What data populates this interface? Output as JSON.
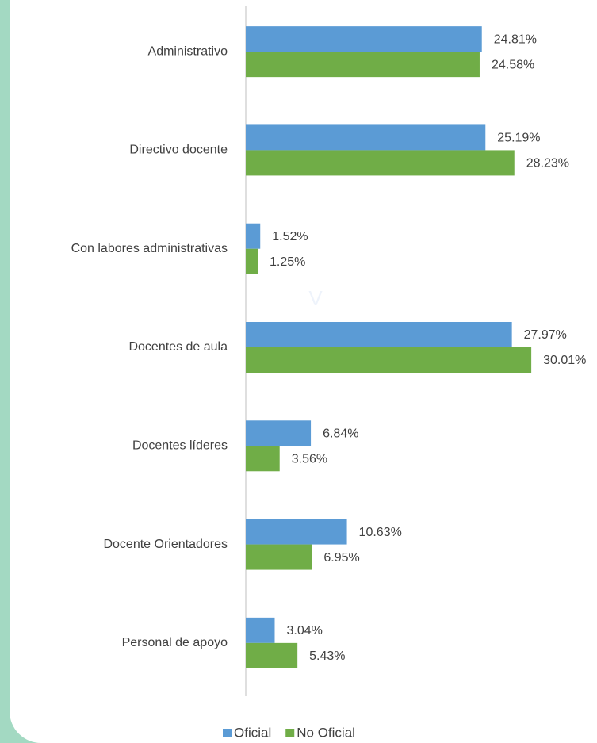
{
  "chart_data": {
    "type": "hbar",
    "categories": [
      "Administrativo",
      "Directivo docente",
      "Con labores administrativas",
      "Docentes de aula",
      "Docentes líderes",
      "Docente Orientadores",
      "Personal de apoyo"
    ],
    "series": [
      {
        "name": "Oficial",
        "color": "#5b9bd5",
        "values": [
          24.81,
          25.19,
          1.52,
          27.97,
          6.84,
          10.63,
          3.04
        ],
        "value_labels": [
          "24.81%",
          "25.19%",
          "1.52%",
          "27.97%",
          "6.84%",
          "10.63%",
          "3.04%"
        ]
      },
      {
        "name": "No Oficial",
        "color": "#70ad47",
        "values": [
          24.58,
          28.23,
          1.25,
          30.01,
          3.56,
          6.95,
          5.43
        ],
        "value_labels": [
          "24.58%",
          "28.23%",
          "1.25%",
          "30.01%",
          "3.56%",
          "6.95%",
          "5.43%"
        ]
      }
    ],
    "xlim": [
      0,
      35
    ],
    "annotation": "V",
    "legend": "bottom"
  }
}
